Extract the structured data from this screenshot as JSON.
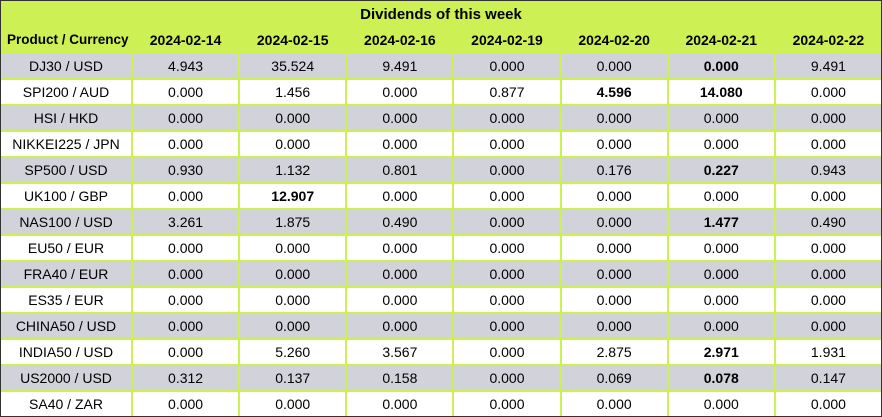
{
  "colors": {
    "header_bg": "#CDF155",
    "grid_line": "#CDF155",
    "row_alt_bg": "#D2D2DA",
    "row_bg": "#FFFFFF",
    "outer_border": "#333333",
    "text": "#000000"
  },
  "chart_data": {
    "type": "table",
    "title": "Dividends of this week",
    "columns": [
      "Product / Currency",
      "2024-02-14",
      "2024-02-15",
      "2024-02-16",
      "2024-02-19",
      "2024-02-20",
      "2024-02-21",
      "2024-02-22"
    ],
    "rows": [
      {
        "product": "DJ30 / USD",
        "values": [
          "4.943",
          "35.524",
          "9.491",
          "0.000",
          "0.000",
          "0.000",
          "9.491"
        ],
        "bold_cols": [
          5
        ]
      },
      {
        "product": "SPI200 / AUD",
        "values": [
          "0.000",
          "1.456",
          "0.000",
          "0.877",
          "4.596",
          "14.080",
          "0.000"
        ],
        "bold_cols": [
          4,
          5
        ]
      },
      {
        "product": "HSI / HKD",
        "values": [
          "0.000",
          "0.000",
          "0.000",
          "0.000",
          "0.000",
          "0.000",
          "0.000"
        ],
        "bold_cols": []
      },
      {
        "product": "NIKKEI225 / JPN",
        "values": [
          "0.000",
          "0.000",
          "0.000",
          "0.000",
          "0.000",
          "0.000",
          "0.000"
        ],
        "bold_cols": []
      },
      {
        "product": "SP500 / USD",
        "values": [
          "0.930",
          "1.132",
          "0.801",
          "0.000",
          "0.176",
          "0.227",
          "0.943"
        ],
        "bold_cols": [
          5
        ]
      },
      {
        "product": "UK100 / GBP",
        "values": [
          "0.000",
          "12.907",
          "0.000",
          "0.000",
          "0.000",
          "0.000",
          "0.000"
        ],
        "bold_cols": [
          1
        ]
      },
      {
        "product": "NAS100 / USD",
        "values": [
          "3.261",
          "1.875",
          "0.490",
          "0.000",
          "0.000",
          "1.477",
          "0.490"
        ],
        "bold_cols": [
          5
        ]
      },
      {
        "product": "EU50 / EUR",
        "values": [
          "0.000",
          "0.000",
          "0.000",
          "0.000",
          "0.000",
          "0.000",
          "0.000"
        ],
        "bold_cols": []
      },
      {
        "product": "FRA40 / EUR",
        "values": [
          "0.000",
          "0.000",
          "0.000",
          "0.000",
          "0.000",
          "0.000",
          "0.000"
        ],
        "bold_cols": []
      },
      {
        "product": "ES35 / EUR",
        "values": [
          "0.000",
          "0.000",
          "0.000",
          "0.000",
          "0.000",
          "0.000",
          "0.000"
        ],
        "bold_cols": []
      },
      {
        "product": "CHINA50 / USD",
        "values": [
          "0.000",
          "0.000",
          "0.000",
          "0.000",
          "0.000",
          "0.000",
          "0.000"
        ],
        "bold_cols": []
      },
      {
        "product": "INDIA50 / USD",
        "values": [
          "0.000",
          "5.260",
          "3.567",
          "0.000",
          "2.875",
          "2.971",
          "1.931"
        ],
        "bold_cols": [
          5
        ]
      },
      {
        "product": "US2000 / USD",
        "values": [
          "0.312",
          "0.137",
          "0.158",
          "0.000",
          "0.069",
          "0.078",
          "0.147"
        ],
        "bold_cols": [
          5
        ]
      },
      {
        "product": "SA40 / ZAR",
        "values": [
          "0.000",
          "0.000",
          "0.000",
          "0.000",
          "0.000",
          "0.000",
          "0.000"
        ],
        "bold_cols": []
      }
    ]
  }
}
